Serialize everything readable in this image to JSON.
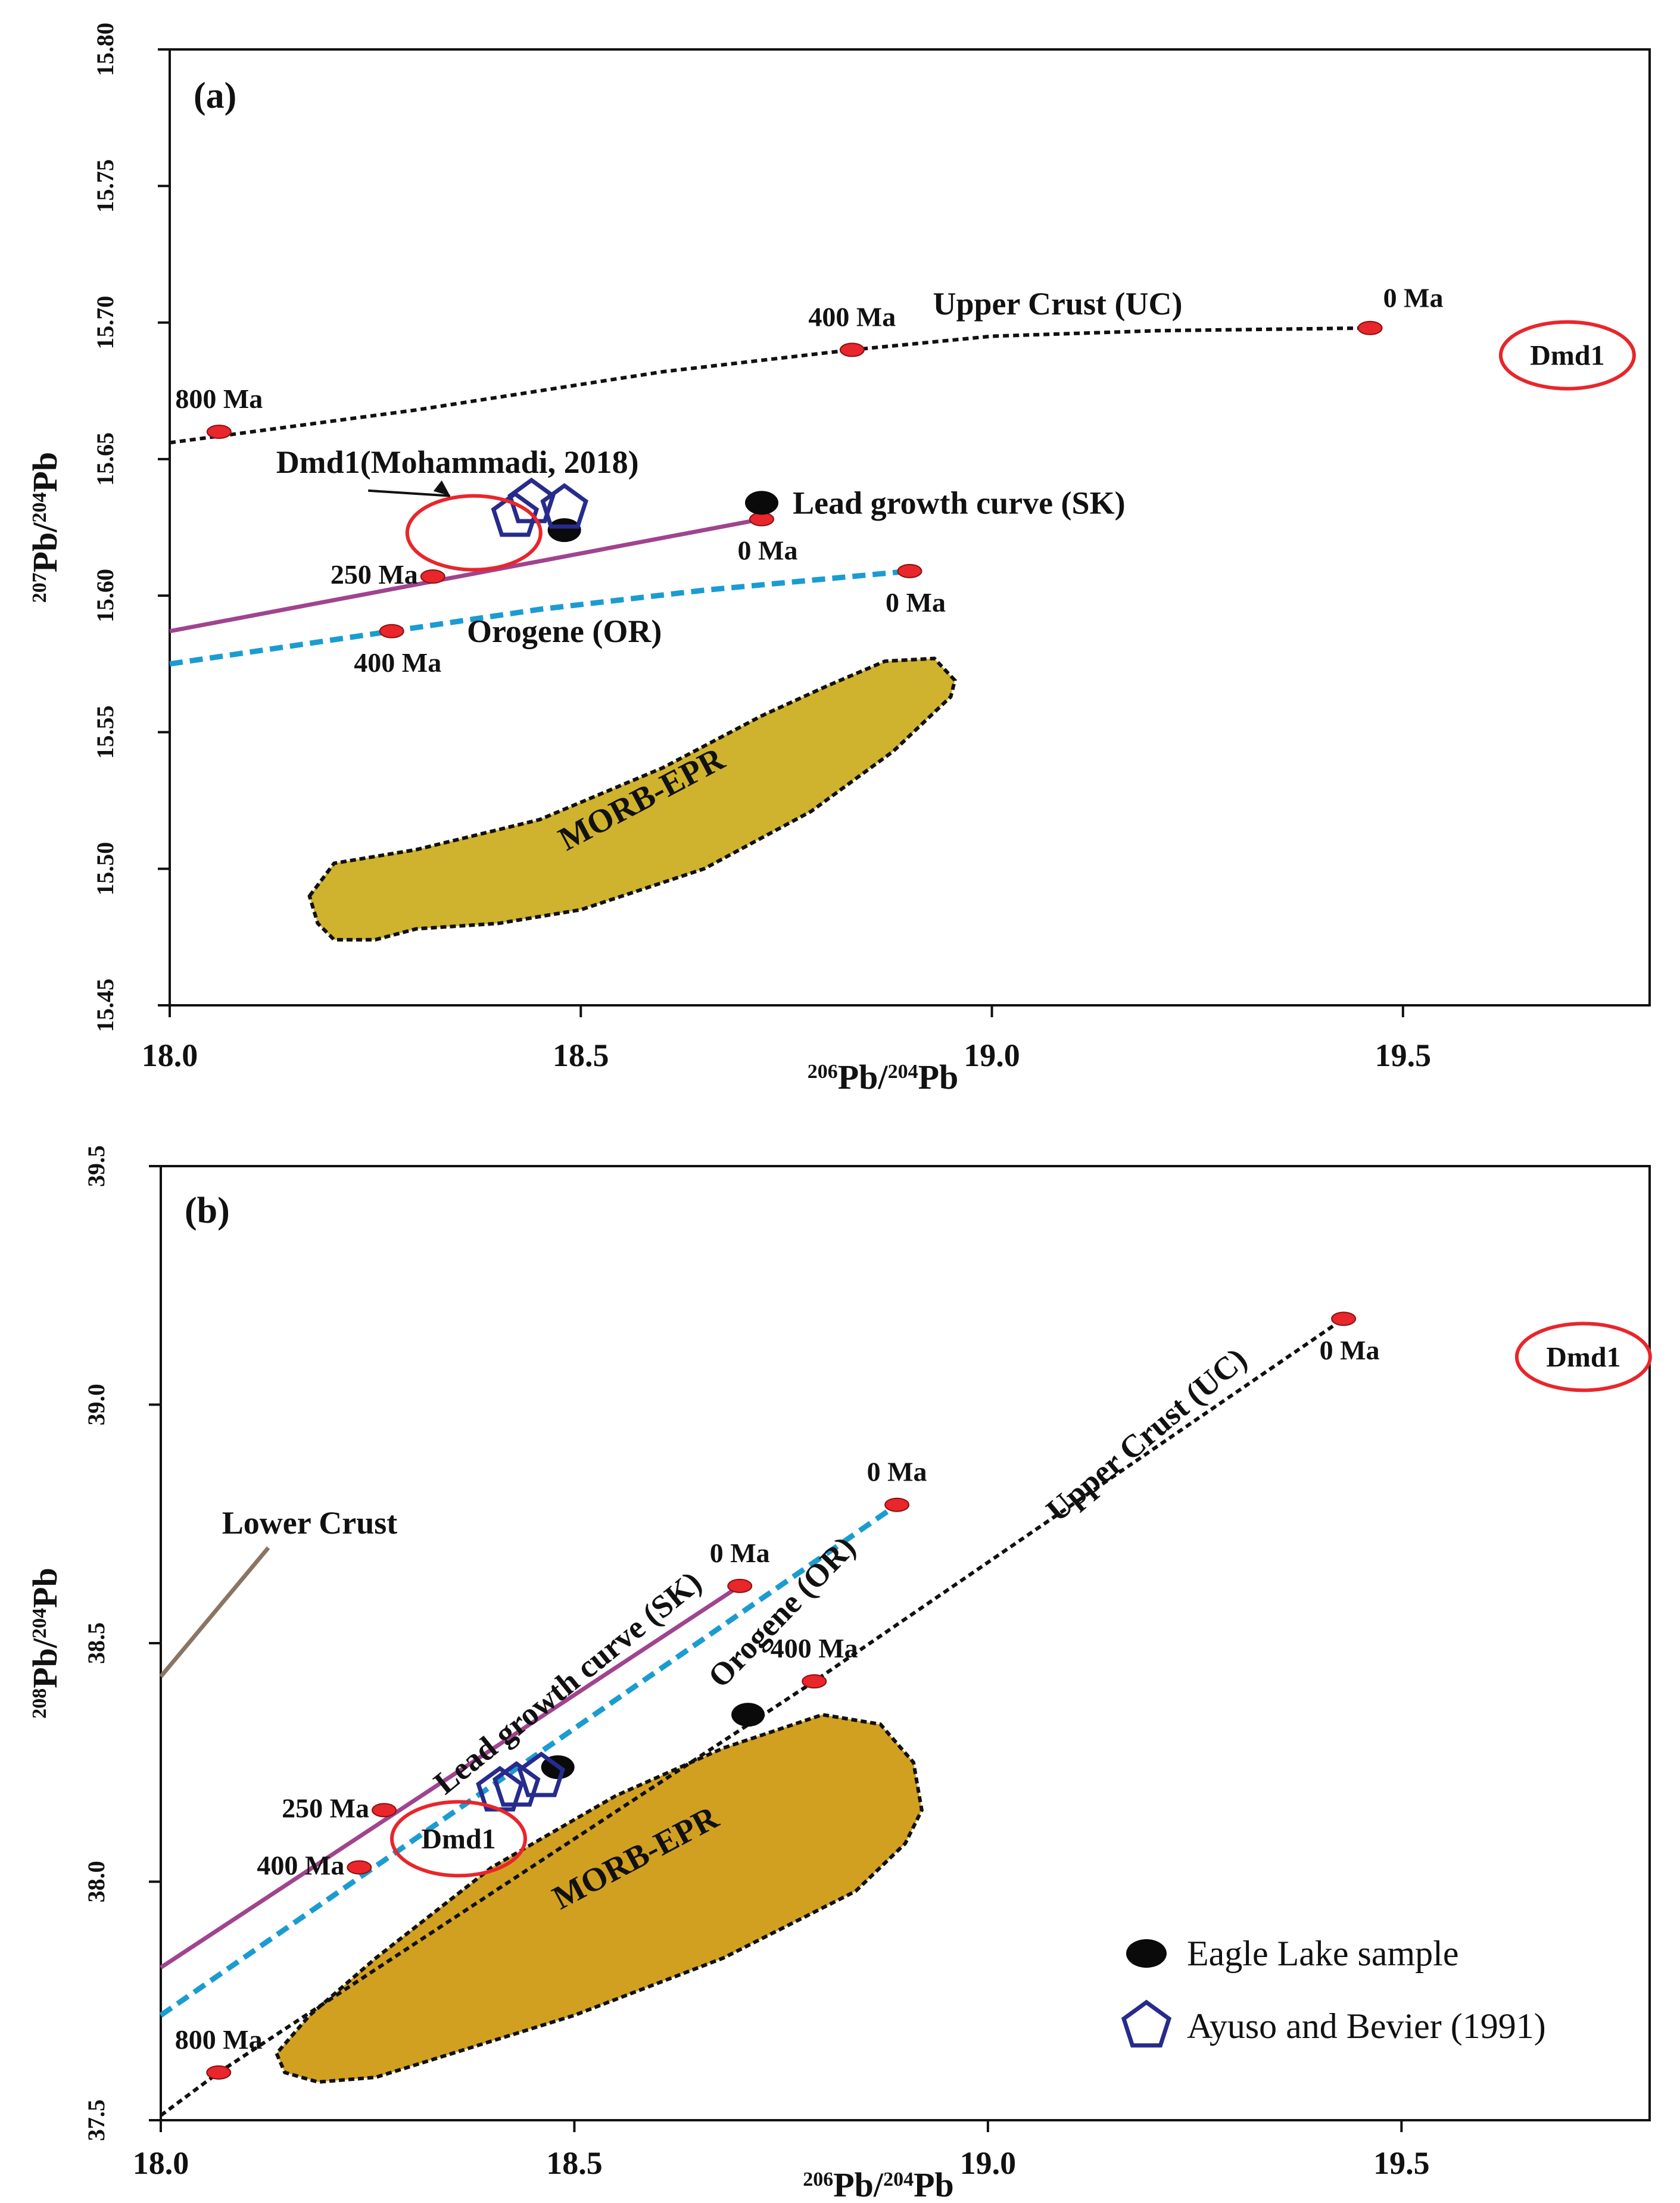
{
  "chart_data": [
    {
      "type": "scatter",
      "panel_label": "(a)",
      "xlabel": {
        "pre": "206",
        "main": "Pb/",
        "sup2": "204",
        "post": "Pb"
      },
      "ylabel": {
        "pre": "207",
        "main": "Pb/",
        "sup2": "204",
        "post": "Pb"
      },
      "xlim": [
        18.0,
        19.8
      ],
      "ylim": [
        15.45,
        15.8
      ],
      "xticks": [
        {
          "value": 18.0,
          "label": "18.0"
        },
        {
          "value": 18.5,
          "label": "18.5"
        },
        {
          "value": 19.0,
          "label": "19.0"
        },
        {
          "value": 19.5,
          "label": "19.5"
        }
      ],
      "yticks": [
        {
          "value": 15.45,
          "label": "15.45"
        },
        {
          "value": 15.5,
          "label": "15.50"
        },
        {
          "value": 15.55,
          "label": "15.55"
        },
        {
          "value": 15.6,
          "label": "15.60"
        },
        {
          "value": 15.65,
          "label": "15.65"
        },
        {
          "value": 15.7,
          "label": "15.70"
        },
        {
          "value": 15.75,
          "label": "15.75"
        },
        {
          "value": 15.8,
          "label": "15.80"
        }
      ],
      "curves": [
        {
          "name": "Upper Crust (UC)",
          "color": "#111111",
          "style": "dotted",
          "points": [
            [
              18.0,
              15.656
            ],
            [
              18.3,
              15.668
            ],
            [
              18.6,
              15.682
            ],
            [
              18.83,
              15.69
            ],
            [
              19.0,
              15.695
            ],
            [
              19.2,
              15.697
            ],
            [
              19.46,
              15.698
            ]
          ]
        },
        {
          "name": "Lead growth curve (SK)",
          "color": "#a0448f",
          "style": "solid",
          "points": [
            [
              18.0,
              15.587
            ],
            [
              18.72,
              15.628
            ]
          ]
        },
        {
          "name": "Orogene (OR)",
          "color": "#1b9cd1",
          "style": "dashed",
          "points": [
            [
              18.0,
              15.575
            ],
            [
              18.27,
              15.587
            ],
            [
              18.45,
              15.595
            ],
            [
              18.65,
              15.602
            ],
            [
              18.9,
              15.609
            ]
          ]
        }
      ],
      "age_markers": [
        {
          "label": "800 Ma",
          "x": 18.06,
          "y": 15.66,
          "anchor": "above"
        },
        {
          "label": "400 Ma",
          "x": 18.83,
          "y": 15.69,
          "anchor": "above"
        },
        {
          "label": "0 Ma",
          "x": 19.46,
          "y": 15.698,
          "anchor": "above-right"
        },
        {
          "label": "250 Ma",
          "x": 18.32,
          "y": 15.607,
          "anchor": "left"
        },
        {
          "label": "0 Ma",
          "x": 18.72,
          "y": 15.628,
          "anchor": "below"
        },
        {
          "label": "400 Ma",
          "x": 18.27,
          "y": 15.587,
          "anchor": "below"
        },
        {
          "label": "0 Ma",
          "x": 18.9,
          "y": 15.609,
          "anchor": "below"
        }
      ],
      "fields": [
        {
          "name": "MORB-EPR",
          "color": "#cfb22e",
          "polygon": [
            [
              18.17,
              15.49
            ],
            [
              18.2,
              15.502
            ],
            [
              18.3,
              15.507
            ],
            [
              18.45,
              15.518
            ],
            [
              18.6,
              15.537
            ],
            [
              18.72,
              15.556
            ],
            [
              18.8,
              15.567
            ],
            [
              18.87,
              15.576
            ],
            [
              18.93,
              15.577
            ],
            [
              18.955,
              15.569
            ],
            [
              18.95,
              15.563
            ],
            [
              18.88,
              15.543
            ],
            [
              18.78,
              15.521
            ],
            [
              18.65,
              15.5
            ],
            [
              18.5,
              15.485
            ],
            [
              18.4,
              15.48
            ],
            [
              18.3,
              15.478
            ],
            [
              18.25,
              15.474
            ],
            [
              18.2,
              15.474
            ],
            [
              18.18,
              15.48
            ]
          ]
        }
      ],
      "eagle_lake_samples": [
        [
          18.72,
          15.634
        ],
        [
          18.48,
          15.624
        ]
      ],
      "ayuso_bevier_samples": [
        [
          18.42,
          15.629
        ],
        [
          18.44,
          15.634
        ],
        [
          18.48,
          15.632
        ]
      ],
      "dmd1_circles": [
        {
          "label": "",
          "x": 18.37,
          "y": 15.623
        },
        {
          "label": "Dmd1",
          "x": 19.7,
          "y": 15.688
        }
      ],
      "annotations": [
        {
          "text": "Upper Crust (UC)",
          "x": 19.08,
          "y": 15.703,
          "rotate": 0
        },
        {
          "text": "Lead growth curve (SK)",
          "x": 18.96,
          "y": 15.63,
          "rotate": 0
        },
        {
          "text": "Orogene (OR)",
          "x": 18.48,
          "y": 15.583,
          "rotate": 0
        },
        {
          "text": "Dmd1(Mohammadi, 2018)",
          "x": 18.35,
          "y": 15.645,
          "rotate": 0
        },
        {
          "text": "MORB-EPR",
          "x": 18.58,
          "y": 15.522,
          "rotate": -28
        }
      ]
    },
    {
      "type": "scatter",
      "panel_label": "(b)",
      "xlabel": {
        "pre": "206",
        "main": "Pb/",
        "sup2": "204",
        "post": "Pb"
      },
      "ylabel": {
        "pre": "208",
        "main": "Pb/",
        "sup2": "204",
        "post": "Pb"
      },
      "xlim": [
        18.0,
        19.8
      ],
      "ylim": [
        37.5,
        39.5
      ],
      "xticks": [
        {
          "value": 18.0,
          "label": "18.0"
        },
        {
          "value": 18.5,
          "label": "18.5"
        },
        {
          "value": 19.0,
          "label": "19.0"
        },
        {
          "value": 19.5,
          "label": "19.5"
        }
      ],
      "yticks": [
        {
          "value": 37.5,
          "label": "37.5"
        },
        {
          "value": 38.0,
          "label": "38.0"
        },
        {
          "value": 38.5,
          "label": "38.5"
        },
        {
          "value": 39.0,
          "label": "39.0"
        },
        {
          "value": 39.5,
          "label": "39.5"
        }
      ],
      "curves": [
        {
          "name": "Upper Crust (UC)",
          "color": "#111111",
          "style": "dotted",
          "points": [
            [
              18.0,
              37.51
            ],
            [
              18.07,
              37.6
            ],
            [
              18.79,
              38.42
            ],
            [
              19.43,
              39.18
            ]
          ]
        },
        {
          "name": "Lead growth curve (SK)",
          "color": "#a0448f",
          "style": "solid",
          "points": [
            [
              18.0,
              37.82
            ],
            [
              18.7,
              38.62
            ]
          ]
        },
        {
          "name": "Orogene (OR)",
          "color": "#1b9cd1",
          "style": "dashed",
          "points": [
            [
              18.0,
              37.72
            ],
            [
              18.89,
              38.79
            ]
          ]
        },
        {
          "name": "Lower Crust",
          "color": "#8a7565",
          "style": "solid",
          "points": [
            [
              18.0,
              38.43
            ],
            [
              18.13,
              38.7
            ]
          ]
        }
      ],
      "age_markers": [
        {
          "label": "0 Ma",
          "x": 19.43,
          "y": 39.18,
          "anchor": "below"
        },
        {
          "label": "0 Ma",
          "x": 18.89,
          "y": 38.79,
          "anchor": "above"
        },
        {
          "label": "0 Ma",
          "x": 18.7,
          "y": 38.62,
          "anchor": "above"
        },
        {
          "label": "400 Ma",
          "x": 18.79,
          "y": 38.42,
          "anchor": "above"
        },
        {
          "label": "250 Ma",
          "x": 18.27,
          "y": 38.15,
          "anchor": "left"
        },
        {
          "label": "400 Ma",
          "x": 18.24,
          "y": 38.03,
          "anchor": "left"
        },
        {
          "label": "800 Ma",
          "x": 18.07,
          "y": 37.6,
          "anchor": "above"
        }
      ],
      "fields": [
        {
          "name": "MORB-EPR",
          "color": "#d1a020",
          "polygon": [
            [
              18.14,
              37.64
            ],
            [
              18.15,
              37.6
            ],
            [
              18.19,
              37.58
            ],
            [
              18.26,
              37.59
            ],
            [
              18.5,
              37.72
            ],
            [
              18.68,
              37.84
            ],
            [
              18.84,
              37.98
            ],
            [
              18.9,
              38.08
            ],
            [
              18.92,
              38.15
            ],
            [
              18.91,
              38.25
            ],
            [
              18.87,
              38.33
            ],
            [
              18.8,
              38.35
            ],
            [
              18.68,
              38.28
            ],
            [
              18.55,
              38.18
            ],
            [
              18.4,
              38.03
            ],
            [
              18.26,
              37.84
            ],
            [
              18.18,
              37.72
            ]
          ]
        }
      ],
      "eagle_lake_samples": [
        [
          18.71,
          38.35
        ],
        [
          18.48,
          38.24
        ]
      ],
      "ayuso_bevier_samples": [
        [
          18.41,
          38.19
        ],
        [
          18.43,
          38.2
        ],
        [
          18.46,
          38.22
        ]
      ],
      "dmd1_circles": [
        {
          "label": "Dmd1",
          "x": 18.36,
          "y": 38.09
        },
        {
          "label": "Dmd1",
          "x": 19.72,
          "y": 39.1
        }
      ],
      "annotations": [
        {
          "text": "Upper Crust (UC)",
          "x": 19.2,
          "y": 38.92,
          "rotate": -40
        },
        {
          "text": "Lead growth curve (SK)",
          "x": 18.5,
          "y": 38.4,
          "rotate": -39
        },
        {
          "text": "Orogene (OR)",
          "x": 18.76,
          "y": 38.55,
          "rotate": -46
        },
        {
          "text": "Lower Crust",
          "x": 18.18,
          "y": 38.73,
          "rotate": 0
        },
        {
          "text": "MORB-EPR",
          "x": 18.58,
          "y": 38.03,
          "rotate": -28
        }
      ],
      "legend": [
        {
          "label": "Eagle Lake sample",
          "marker": "black-ellipse"
        },
        {
          "label": "Ayuso and Bevier (1991)",
          "marker": "blue-pentagon"
        }
      ]
    }
  ]
}
